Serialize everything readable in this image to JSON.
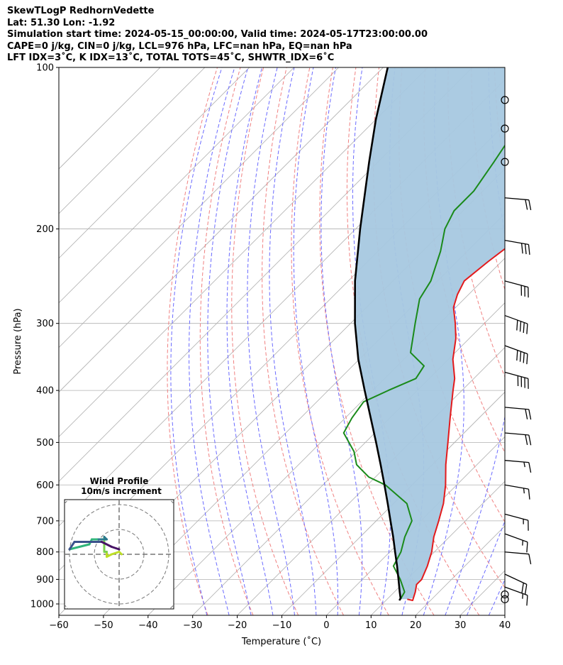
{
  "header": {
    "line1": "SkewTLogP RedhornVedette",
    "line2": "Lat: 51.30   Lon: -1.92",
    "line3": "Simulation start time: 2024-05-15_00:00:00, Valid time: 2024-05-17T23:00:00.00",
    "line4": "CAPE=0 j/kg, CIN=0 j/kg, LCL=976 hPa, LFC=nan hPa, EQ=nan hPa",
    "line5": "LFT IDX=3˚C, K IDX=13˚C, TOTAL TOTS=45˚C, SHWTR_IDX=6˚C"
  },
  "chart_data": {
    "type": "line",
    "subtype": "skew-T log-P",
    "xlabel": "Temperature (˚C)",
    "ylabel": "Pressure (hPa)",
    "xlim": [
      -60,
      40
    ],
    "ylim": [
      1050,
      100
    ],
    "log_y": true,
    "grid": true,
    "x_ticks": [
      "−60",
      "−50",
      "−40",
      "−30",
      "−20",
      "−10",
      "0",
      "10",
      "20",
      "30",
      "40"
    ],
    "y_ticks": [
      "1000",
      "900",
      "800",
      "700",
      "600",
      "500",
      "400",
      "300",
      "200",
      "100"
    ],
    "colors": {
      "temperature": "#e31a1c",
      "dewpoint": "#1a8a1a",
      "parcel": "#000000",
      "shade": "#a6c8e0",
      "dry_adiabat": "#f08080",
      "moist_adiabat": "#6a6aff",
      "mixing": "#9a9a9a"
    },
    "series": [
      {
        "role": "temperature",
        "pressure": [
          980,
          985,
          950,
          920,
          900,
          850,
          800,
          750,
          700,
          650,
          600,
          550,
          500,
          450,
          400,
          380,
          350,
          320,
          300,
          280,
          265,
          250,
          230,
          210,
          200,
          180,
          165,
          150,
          140,
          130,
          120,
          110,
          100
        ],
        "temp": [
          14.5,
          16.0,
          14.7,
          13.3,
          13.3,
          11.6,
          9.4,
          6.5,
          4.0,
          1.2,
          -2.5,
          -7.0,
          -11.5,
          -16.5,
          -22.0,
          -24.3,
          -29.0,
          -33.0,
          -36.5,
          -40.5,
          -42.5,
          -44.0,
          -43.0,
          -41.5,
          -40.5,
          -38.5,
          -36.0,
          -33.5,
          -31.5,
          -28.5,
          -26.0,
          -23.5,
          -21.5
        ]
      },
      {
        "role": "dewpoint",
        "pressure": [
          980,
          950,
          900,
          850,
          800,
          750,
          700,
          650,
          600,
          580,
          550,
          520,
          480,
          450,
          420,
          400,
          380,
          360,
          340,
          300,
          270,
          250,
          220,
          200,
          185,
          170,
          150,
          130,
          110,
          100
        ],
        "temp": [
          13.0,
          12.3,
          8.5,
          4.0,
          2.5,
          0.0,
          -2.0,
          -7.0,
          -16.0,
          -21.5,
          -27.0,
          -30.5,
          -37.0,
          -38.5,
          -39.5,
          -36.5,
          -33.0,
          -34.0,
          -40.0,
          -45.5,
          -50.0,
          -51.5,
          -56.0,
          -60.0,
          -62.0,
          -62.0,
          -64.0,
          -66.5,
          -68.5,
          -70.0
        ]
      },
      {
        "role": "parcel",
        "pressure": [
          985,
          976,
          950,
          900,
          850,
          800,
          750,
          700,
          650,
          600,
          550,
          500,
          450,
          400,
          350,
          300,
          250,
          200,
          150,
          125,
          100
        ],
        "temp": [
          13.0,
          12.8,
          11.2,
          8.1,
          4.8,
          1.2,
          -2.6,
          -6.8,
          -11.3,
          -16.2,
          -21.6,
          -27.6,
          -34.3,
          -41.8,
          -50.2,
          -59.0,
          -68.5,
          -79.0,
          -92.0,
          -100.0,
          -109.0
        ]
      }
    ],
    "wind_barbs": {
      "pressure": [
        980,
        960,
        930,
        880,
        800,
        740,
        680,
        600,
        540,
        480,
        430,
        370,
        330,
        290,
        250,
        210,
        175,
        150,
        130,
        115
      ],
      "speed_kt": [
        0,
        0,
        15,
        20,
        10,
        15,
        15,
        15,
        15,
        20,
        20,
        40,
        40,
        40,
        30,
        30,
        20,
        0,
        0,
        0
      ],
      "direction_deg": [
        0,
        0,
        290,
        295,
        275,
        290,
        285,
        280,
        275,
        275,
        275,
        285,
        290,
        290,
        285,
        280,
        275,
        0,
        0,
        0
      ]
    },
    "hodograph": {
      "title": "Wind Profile",
      "subtitle": "10m/s increment",
      "ring_increment": "10m/s",
      "u": [
        1,
        0,
        -3,
        -5,
        -5,
        -6,
        -6,
        -6,
        -6,
        -5,
        -6,
        -9,
        -11,
        -12,
        -16,
        -20,
        -18,
        -15,
        -12,
        -7,
        -3,
        0
      ],
      "v": [
        0,
        1,
        0,
        -1,
        1,
        1,
        3,
        6,
        7,
        6,
        6,
        6,
        6,
        4,
        3,
        2,
        5,
        5,
        5,
        5,
        3,
        2
      ],
      "colors": [
        "#bddf26",
        "#7ad151",
        "#2a788e",
        "#31b57b",
        "#3b528b",
        "#471365"
      ]
    }
  }
}
